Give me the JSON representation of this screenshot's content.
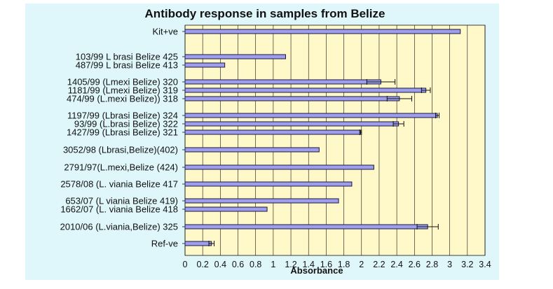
{
  "chart_data": {
    "type": "bar",
    "orientation": "horizontal",
    "title": "Antibody response in samples from Belize",
    "xlabel": "Absorbance",
    "ylabel": "",
    "xlim": [
      0,
      3.4
    ],
    "xticks": [
      "0",
      "0.2",
      "0.4",
      "0.6",
      "0.8",
      "1",
      "1.2",
      "1.4",
      "1.6",
      "1.8",
      "2",
      "2.2",
      "2.4",
      "2.6",
      "2.8",
      "3",
      "3.2",
      "3.4"
    ],
    "grid": "vertical",
    "legend": "none",
    "colors": {
      "bar_fill": "#9e9eec",
      "bar_stroke": "#1a1a40",
      "plot_background": "#fff8c8",
      "frame_background": "#dff6fb",
      "gridline": "#111111"
    },
    "categories": [
      "Kit+ve",
      "103/99 L brasi Belize 425",
      "487/99 L brasi Belize 413",
      "1405/99 (Lmexi Belize) 320",
      "1181/99 (Lmexi Belize) 319",
      "474/99 (L.mexi Belize)) 318",
      "1197/99 (Lbrasi Belize) 324",
      "93/99 (L.brasi Belize) 322",
      "1427/99 (Lbrasi Belize) 321",
      "3052/98 (Lbrasi,Belize)(402)",
      "2791/97(L.mexi,Belize (424)",
      "2578/08 (L. viania Belize 417",
      "653/07 (L viania Belize 419)",
      "1662/07 (L. viania Belize 418",
      "2010/06 (L.viania,Belize) 325",
      "Ref-ve"
    ],
    "values": [
      3.12,
      1.14,
      0.45,
      2.22,
      2.73,
      2.43,
      2.86,
      2.42,
      1.99,
      1.52,
      2.14,
      1.89,
      1.74,
      0.93,
      2.75,
      0.3
    ],
    "errors": [
      0,
      0,
      0,
      0.16,
      0.05,
      0.14,
      0.02,
      0.06,
      0.01,
      0,
      0,
      0,
      0,
      0,
      0.12,
      0.03
    ]
  }
}
